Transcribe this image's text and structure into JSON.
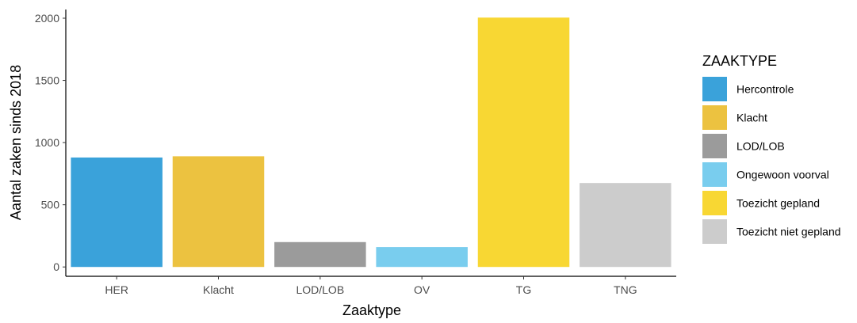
{
  "chart_data": {
    "type": "bar",
    "categories": [
      "HER",
      "Klacht",
      "LOD/LOB",
      "OV",
      "TG",
      "TNG"
    ],
    "values": [
      880,
      890,
      200,
      160,
      2005,
      675
    ],
    "colors": [
      "#3aa2da",
      "#ecc240",
      "#9b9b9b",
      "#79cdee",
      "#f8d733",
      "#cccccc"
    ],
    "xlabel": "Zaaktype",
    "ylabel": "Aantal zaken sinds 2018",
    "ylim": [
      -75,
      2070
    ],
    "yticks": [
      0,
      500,
      1000,
      1500,
      2000
    ],
    "grid": false,
    "legend": {
      "title": "ZAAKTYPE",
      "placement": "right",
      "items": [
        {
          "label": "Hercontrole",
          "color": "#3aa2da"
        },
        {
          "label": "Klacht",
          "color": "#ecc240"
        },
        {
          "label": "LOD/LOB",
          "color": "#9b9b9b"
        },
        {
          "label": "Ongewoon voorval",
          "color": "#79cdee"
        },
        {
          "label": "Toezicht gepland",
          "color": "#f8d733"
        },
        {
          "label": "Toezicht niet gepland",
          "color": "#cccccc"
        }
      ]
    }
  }
}
